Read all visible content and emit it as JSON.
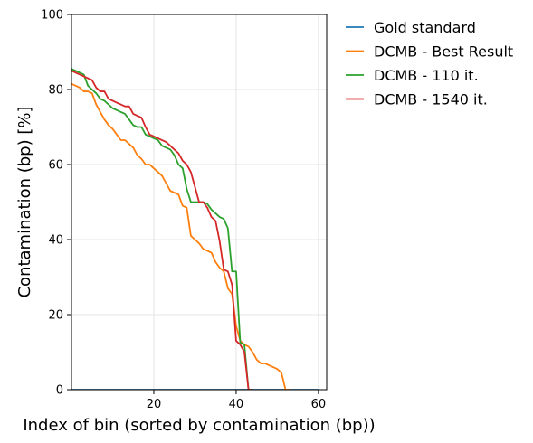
{
  "chart_data": {
    "type": "line",
    "title": "",
    "xlabel": "Index of bin (sorted by contamination (bp))",
    "ylabel": "Contamination (bp) [%]",
    "xlim": [
      0,
      62
    ],
    "ylim": [
      0,
      100
    ],
    "xticks": [
      20,
      40,
      60
    ],
    "yticks": [
      0,
      20,
      40,
      60,
      80,
      100
    ],
    "grid": true,
    "legend_position": "outside-right-top",
    "series": [
      {
        "name": "Gold standard",
        "color": "#1f77b4",
        "x": [
          0,
          60
        ],
        "y": [
          0,
          0
        ]
      },
      {
        "name": "DCMB - Best Result",
        "color": "#ff7f0e",
        "x": [
          0,
          1,
          2,
          3,
          4,
          5,
          6,
          7,
          8,
          9,
          10,
          11,
          12,
          13,
          14,
          15,
          16,
          17,
          18,
          19,
          20,
          21,
          22,
          23,
          24,
          25,
          26,
          27,
          28,
          29,
          30,
          31,
          32,
          33,
          34,
          35,
          36,
          37,
          38,
          39,
          40,
          41,
          42,
          43,
          44,
          45,
          46,
          47,
          48,
          49,
          50,
          51,
          52,
          53
        ],
        "y": [
          81.5,
          81,
          80.5,
          79.5,
          79.5,
          79,
          76,
          74,
          72,
          70.5,
          69.5,
          68,
          66.5,
          66.5,
          65.5,
          64.5,
          62.5,
          61.5,
          60,
          60,
          59,
          58,
          57,
          55,
          53,
          52.5,
          52,
          49,
          48.5,
          41,
          40,
          39,
          37.5,
          37,
          36.5,
          34,
          32.5,
          31.5,
          27,
          25.5,
          17,
          13,
          12,
          11.5,
          10,
          8,
          7,
          7,
          6.5,
          6,
          5.5,
          4.5,
          0,
          0
        ]
      },
      {
        "name": "DCMB - 110 it.",
        "color": "#2ca02c",
        "x": [
          0,
          1,
          2,
          3,
          4,
          5,
          6,
          7,
          8,
          9,
          10,
          11,
          12,
          13,
          14,
          15,
          16,
          17,
          18,
          19,
          20,
          21,
          22,
          23,
          24,
          25,
          26,
          27,
          28,
          29,
          30,
          31,
          32,
          33,
          34,
          35,
          36,
          37,
          38,
          39,
          40,
          41,
          42,
          43
        ],
        "y": [
          85.5,
          85,
          84.5,
          84,
          81,
          80,
          79,
          77.5,
          77,
          76,
          75,
          74.5,
          74,
          73.5,
          72,
          70.5,
          70,
          70,
          68,
          67.5,
          67,
          66.5,
          65,
          64.5,
          64,
          62.5,
          60,
          59,
          53.5,
          50,
          50,
          50,
          50,
          49.5,
          48,
          47,
          46,
          45.5,
          43,
          31.5,
          31.5,
          12.5,
          12,
          0
        ]
      },
      {
        "name": "DCMB - 1540 it.",
        "color": "#d62728",
        "x": [
          0,
          1,
          2,
          3,
          4,
          5,
          6,
          7,
          8,
          9,
          10,
          11,
          12,
          13,
          14,
          15,
          16,
          17,
          18,
          19,
          20,
          21,
          22,
          23,
          24,
          25,
          26,
          27,
          28,
          29,
          30,
          31,
          32,
          33,
          34,
          35,
          36,
          37,
          38,
          39,
          40,
          41,
          42,
          43,
          44
        ],
        "y": [
          85,
          84.5,
          84,
          83.5,
          83,
          82.5,
          80.5,
          79.5,
          79.5,
          77.5,
          77,
          76.5,
          76,
          75.5,
          75.5,
          73.5,
          73,
          72.5,
          70,
          68,
          67.5,
          67,
          66.5,
          66,
          65,
          64,
          63,
          61,
          60,
          58,
          54,
          50,
          50,
          48.5,
          46,
          45,
          39.5,
          32,
          31.5,
          28,
          13,
          12,
          10,
          0,
          0
        ]
      }
    ]
  }
}
